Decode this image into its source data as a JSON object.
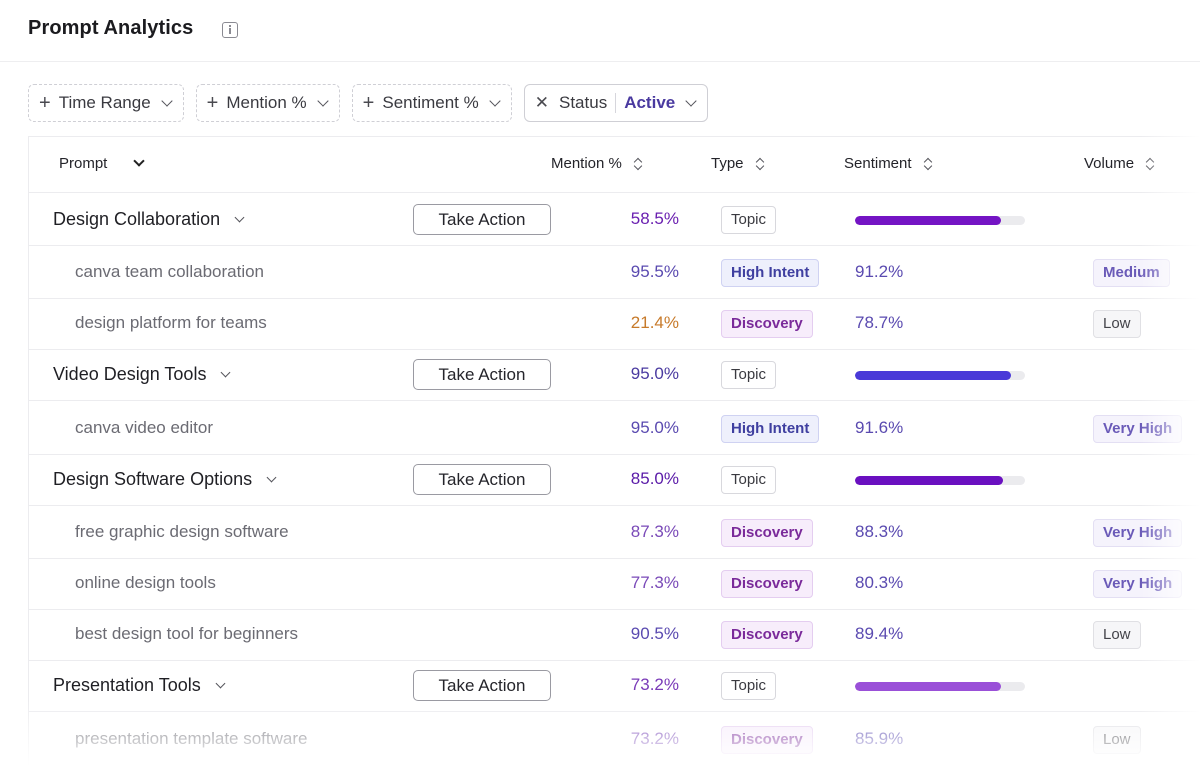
{
  "header": {
    "title": "Prompt Analytics",
    "info_icon": "info-icon"
  },
  "filters": {
    "time_range": "Time Range",
    "mention": "Mention %",
    "sentiment": "Sentiment %",
    "status_label": "Status",
    "status_value": "Active"
  },
  "table": {
    "columns": {
      "prompt": "Prompt",
      "mention": "Mention %",
      "type": "Type",
      "sentiment": "Sentiment",
      "volume": "Volume"
    },
    "action_label": "Take Action",
    "rows": [
      {
        "kind": "group",
        "name": "Design Collaboration",
        "mention": "58.5%",
        "mention_color": "#6a1fb0",
        "type": "Topic",
        "sentiment_fraction": 0.86,
        "bar_color": "#7414c4"
      },
      {
        "kind": "child",
        "name": "canva team collaboration",
        "mention": "95.5%",
        "mention_color": "#5a4ab0",
        "type": "High Intent",
        "sentiment": "91.2%",
        "volume": "Medium"
      },
      {
        "kind": "child",
        "name": "design platform for teams",
        "mention": "21.4%",
        "mention_color": "#c77a2a",
        "type": "Discovery",
        "sentiment": "78.7%",
        "volume": "Low"
      },
      {
        "kind": "group",
        "name": "Video Design Tools",
        "mention": "95.0%",
        "mention_color": "#4a3aa0",
        "type": "Topic",
        "sentiment_fraction": 0.92,
        "bar_color": "#4a3ad8"
      },
      {
        "kind": "child",
        "name": "canva video editor",
        "mention": "95.0%",
        "mention_color": "#5a4ab0",
        "type": "High Intent",
        "sentiment": "91.6%",
        "volume": "Very High"
      },
      {
        "kind": "group",
        "name": "Design Software Options",
        "mention": "85.0%",
        "mention_color": "#5a1aa8",
        "type": "Topic",
        "sentiment_fraction": 0.87,
        "bar_color": "#6a10c0"
      },
      {
        "kind": "child",
        "name": "free graphic design software",
        "mention": "87.3%",
        "mention_color": "#7a4ab8",
        "type": "Discovery",
        "sentiment": "88.3%",
        "volume": "Very High"
      },
      {
        "kind": "child",
        "name": "online design tools",
        "mention": "77.3%",
        "mention_color": "#7a4ab8",
        "type": "Discovery",
        "sentiment": "80.3%",
        "volume": "Very High"
      },
      {
        "kind": "child",
        "name": "best design tool for beginners",
        "mention": "90.5%",
        "mention_color": "#5a4ab0",
        "type": "Discovery",
        "sentiment": "89.4%",
        "volume": "Low"
      },
      {
        "kind": "group",
        "name": "Presentation Tools",
        "mention": "73.2%",
        "mention_color": "#7a3ab8",
        "type": "Topic",
        "sentiment_fraction": 0.86,
        "bar_color": "#9a50d8"
      },
      {
        "kind": "child",
        "name": "presentation template software",
        "mention": "73.2%",
        "mention_color": "#7a4ab8",
        "type": "Discovery",
        "sentiment": "85.9%",
        "volume": "Low"
      }
    ]
  }
}
